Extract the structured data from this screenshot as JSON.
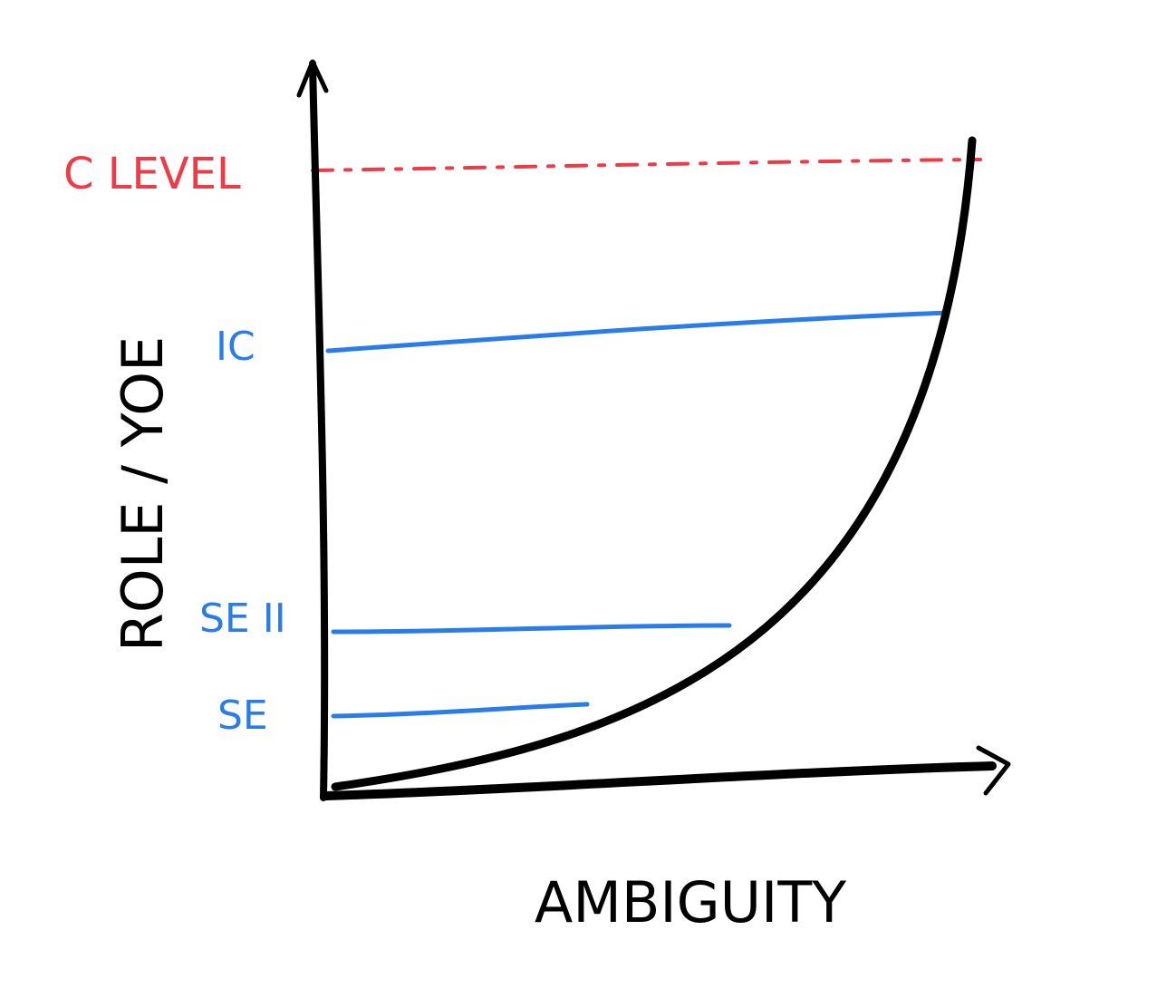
{
  "y_axis_label": "ROLE / YOE",
  "x_axis_label": "AMBIGUITY",
  "levels": [
    "C LEVEL",
    "IC",
    "SE II",
    "SE"
  ]
}
